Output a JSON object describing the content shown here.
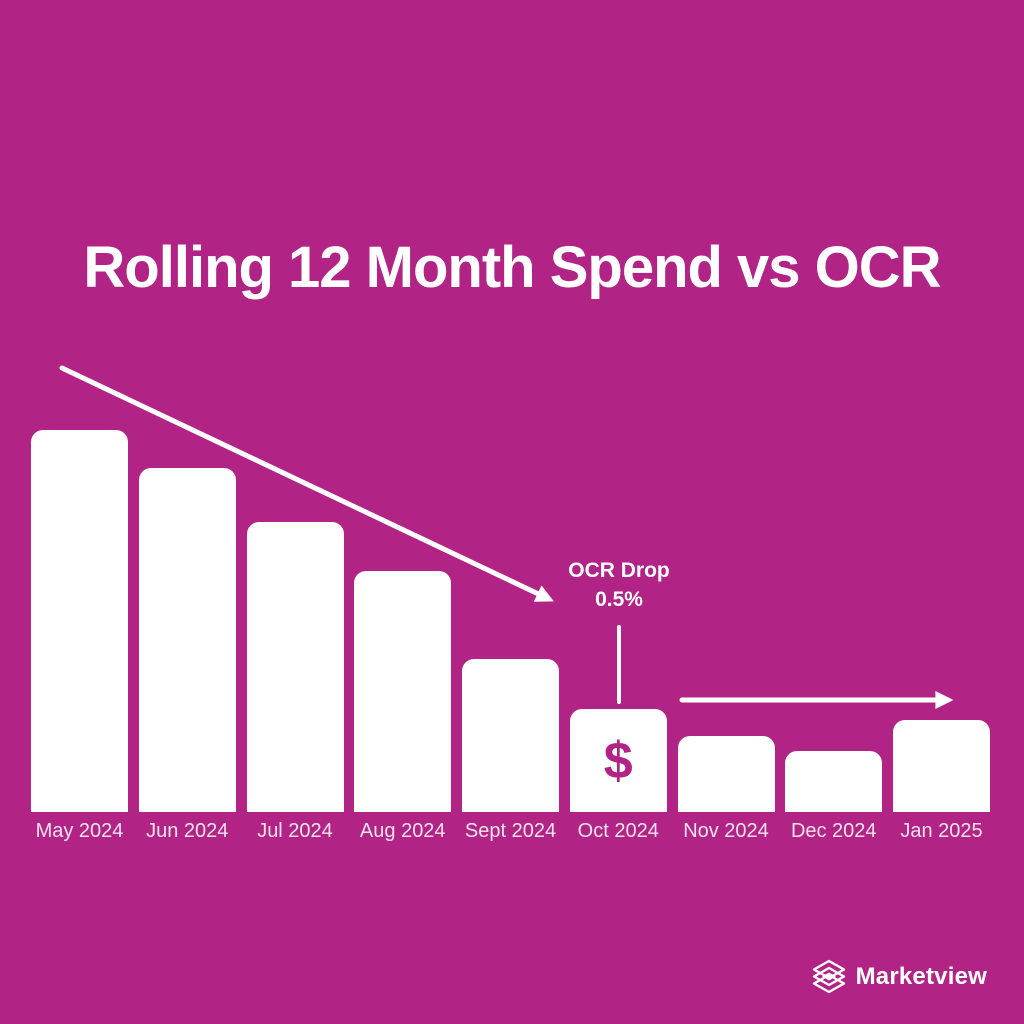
{
  "chart_data": {
    "type": "bar",
    "title": "Rolling 12 Month Spend vs OCR",
    "categories": [
      "May 2024",
      "Jun 2024",
      "Jul 2024",
      "Aug 2024",
      "Sept 2024",
      "Oct 2024",
      "Nov 2024",
      "Dec 2024",
      "Jan 2025"
    ],
    "values": [
      100,
      90,
      76,
      63,
      40,
      27,
      20,
      16,
      24
    ],
    "ylim": [
      0,
      100
    ],
    "xlabel": "",
    "ylabel": "",
    "grid": false,
    "legend": "none",
    "bar_color": "#FFFFFF",
    "label_color": "#F6E2F0",
    "background_color": "#B12485",
    "callout": {
      "line1": "OCR Drop",
      "line2": "0.5%",
      "target_category": "Oct 2024"
    },
    "marker": {
      "symbol": "$",
      "category": "Oct 2024"
    },
    "trend_arrows": [
      {
        "name": "declining-spend-arrow",
        "direction": "down-right",
        "span": [
          "May 2024",
          "Sept 2024"
        ]
      },
      {
        "name": "flat-spend-arrow",
        "direction": "right",
        "span": [
          "Nov 2024",
          "Jan 2025"
        ]
      }
    ]
  },
  "footer": {
    "brand": "Marketview"
  }
}
